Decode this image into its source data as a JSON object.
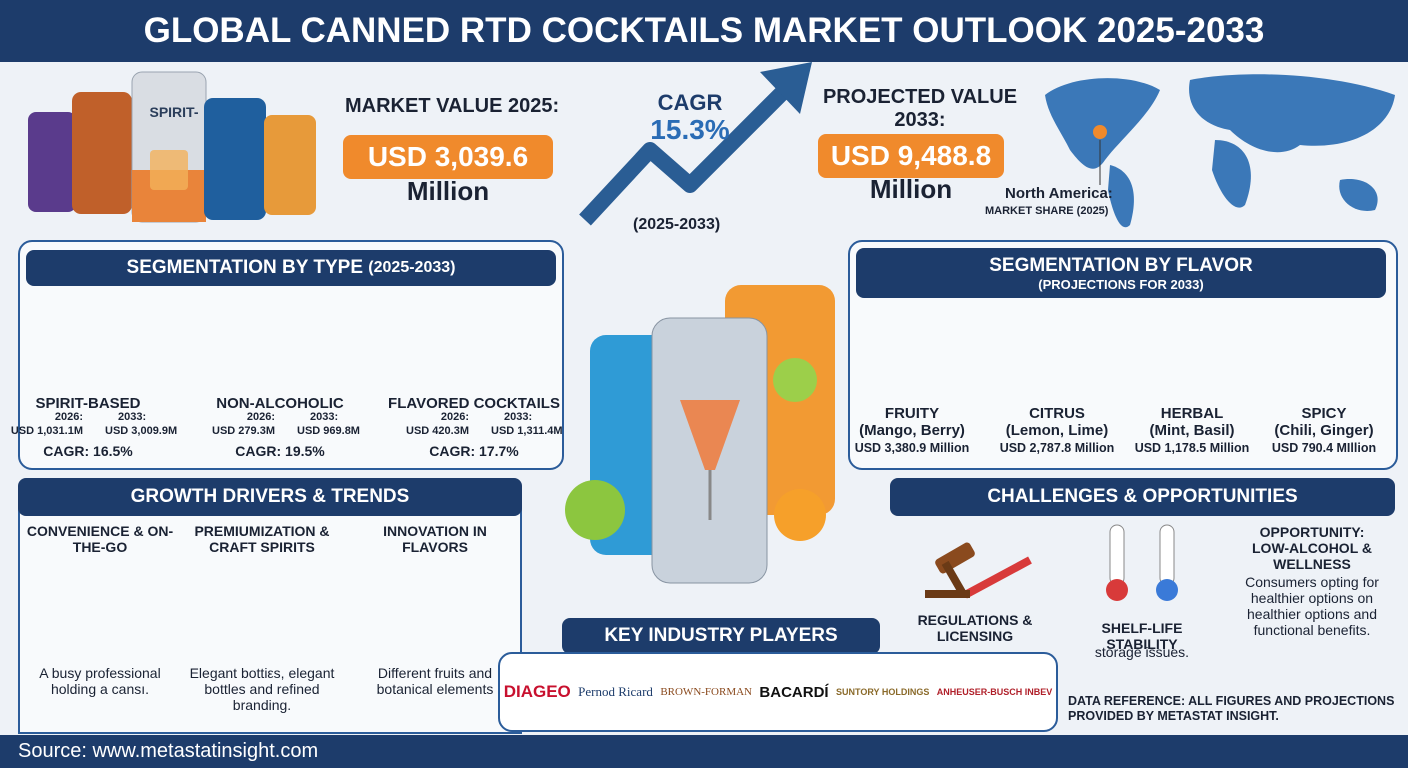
{
  "header": {
    "title": "GLOBAL CANNED RTD COCKTAILS MARKET OUTLOOK 2025-2033"
  },
  "hero": {
    "can_label": "SPIRIT-",
    "market_value_label": "MARKET VALUE 2025:",
    "market_value": "USD 3,039.6",
    "market_value_unit": "Million",
    "cagr_label": "CAGR",
    "cagr": "15.3%",
    "cagr_period": "(2025-2033)",
    "projected_label": "PROJECTED VALUE 2033:",
    "projected_value": "USD 9,488.8",
    "projected_unit": "Million",
    "region_label": "North America:",
    "region_sub": "MARKET SHARE (2025)"
  },
  "segmentation_type": {
    "title": "SEGMENTATION BY TYPE",
    "period": "(2025-2033)",
    "items": [
      {
        "name": "SPIRIT-BASED",
        "from_label": "2026:",
        "from_value": "USD 1,031.1M",
        "to_label": "2033:",
        "to_value": "USD 3,009.9M",
        "cagr": "CAGR: 16.5%"
      },
      {
        "name": "NON-ALCOHOLIC",
        "from_label": "2026:",
        "from_value": "USD 279.3M",
        "to_label": "2033:",
        "to_value": "USD 969.8M",
        "cagr": "CAGR: 19.5%"
      },
      {
        "name": "FLAVORED COCKTAILS",
        "from_label": "2026:",
        "from_value": "USD 420.3M",
        "to_label": "2033:",
        "to_value": "USD 1,311.4M",
        "cagr": "CAGR: 17.7%"
      }
    ]
  },
  "segmentation_flavor": {
    "title": "SEGMENTATION BY FLAVOR",
    "subtitle": "(PROJECTIONS FOR 2033)",
    "items": [
      {
        "name": "FRUITY",
        "detail": "(Mango, Berry)",
        "value": "USD 3,380.9 Million"
      },
      {
        "name": "CITRUS",
        "detail": "(Lemon, Lime)",
        "value": "USD 2,787.8 Million"
      },
      {
        "name": "HERBAL",
        "detail": "(Mint, Basil)",
        "value": "USD 1,178.5 Million"
      },
      {
        "name": "SPICY",
        "detail": "(Chili, Ginger)",
        "value": "USD 790.4 MIllion"
      }
    ]
  },
  "growth": {
    "title": "GROWTH DRIVERS & TRENDS",
    "items": [
      {
        "title": "CONVENIENCE & ON-THE-GO",
        "text": "A busy professional holding a cansı."
      },
      {
        "title": "PREMIUMIZATION & CRAFT SPIRITS",
        "text": "Elegant bottiεs, elegant bottles and refined branding."
      },
      {
        "title": "INNOVATION IN FLAVORS",
        "text": "Different fruits and botanical elements"
      }
    ]
  },
  "challenges": {
    "title": "CHALLENGES & OPPORTUNITIES",
    "items": [
      {
        "title": "REGULATIONS & LICENSING"
      },
      {
        "title": "SHELF-LIFE STABILITY",
        "text": "storage issues."
      },
      {
        "title": "OPPORTUNITY: LOW-ALCOHOL & WELLNESS",
        "text": "Consumers opting for healthier options on healthier options and functional benefits."
      }
    ]
  },
  "players": {
    "title": "KEY INDUSTRY PLAYERS",
    "list": [
      "DIAGEO",
      "Pernod Ricard",
      "BROWN-FORMAN",
      "BACARDÍ",
      "SUNTORY HOLDINGS",
      "ANHEUSER-BUSCH INBEV"
    ]
  },
  "reference": "DATA REFERENCE: ALL FIGURES AND PROJECTIONS PROVIDED BY METASTAT INSIGHT.",
  "footer": {
    "source": "Source: www.metastatinsight.com"
  }
}
